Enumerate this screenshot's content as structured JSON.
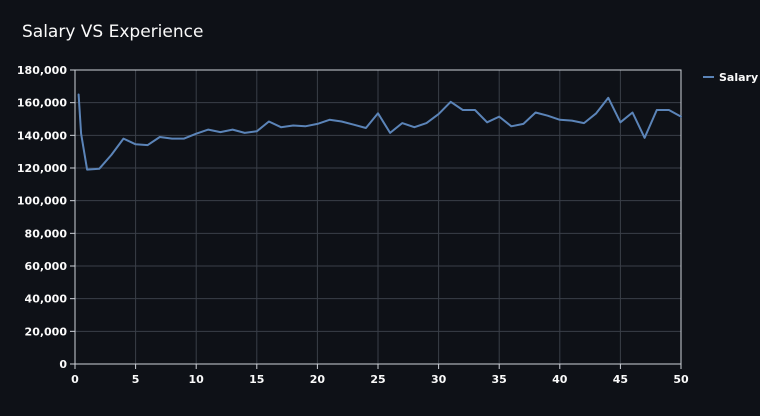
{
  "chart_data": {
    "type": "line",
    "title": "Salary VS Experience",
    "xlabel": "",
    "ylabel": "",
    "xlim": [
      0,
      50
    ],
    "ylim": [
      0,
      180000
    ],
    "x_ticks": [
      0,
      5,
      10,
      15,
      20,
      25,
      30,
      35,
      40,
      45,
      50
    ],
    "x_tick_labels": [
      "0",
      "5",
      "10",
      "15",
      "20",
      "25",
      "30",
      "35",
      "40",
      "45",
      "50"
    ],
    "y_ticks": [
      0,
      20000,
      40000,
      60000,
      80000,
      100000,
      120000,
      140000,
      160000,
      180000
    ],
    "y_tick_labels": [
      "0",
      "20,000",
      "40,000",
      "60,000",
      "80,000",
      "100,000",
      "120,000",
      "140,000",
      "160,000",
      "180,000"
    ],
    "grid": true,
    "legend_position": "top-right",
    "background_color": "#0e1117",
    "plot_border_color": "#cfd3da",
    "grid_color": "#3a3f48",
    "text_color": "#fafafa",
    "series": [
      {
        "name": "Salary",
        "color": "#5b84b8",
        "x": [
          0.3,
          0.5,
          1,
          2,
          3,
          4,
          5,
          6,
          7,
          8,
          9,
          10,
          11,
          12,
          13,
          14,
          15,
          16,
          17,
          18,
          19,
          20,
          21,
          22,
          23,
          24,
          25,
          26,
          27,
          28,
          29,
          30,
          31,
          32,
          33,
          34,
          35,
          36,
          37,
          38,
          39,
          40,
          41,
          42,
          43,
          44,
          45,
          46,
          47,
          48,
          49,
          50
        ],
        "y": [
          165000,
          141000,
          119000,
          119500,
          128000,
          138000,
          134500,
          134000,
          139000,
          138000,
          138000,
          141000,
          143500,
          142000,
          143500,
          141500,
          142500,
          148500,
          145000,
          146000,
          145500,
          147000,
          149500,
          148500,
          146500,
          144500,
          153500,
          141500,
          147500,
          145000,
          147500,
          153000,
          160500,
          155500,
          155500,
          148000,
          151500,
          145500,
          147000,
          154000,
          152000,
          149500,
          149000,
          147500,
          153500,
          163000,
          148000,
          154000,
          138500,
          155500,
          155500,
          151500
        ]
      }
    ]
  }
}
